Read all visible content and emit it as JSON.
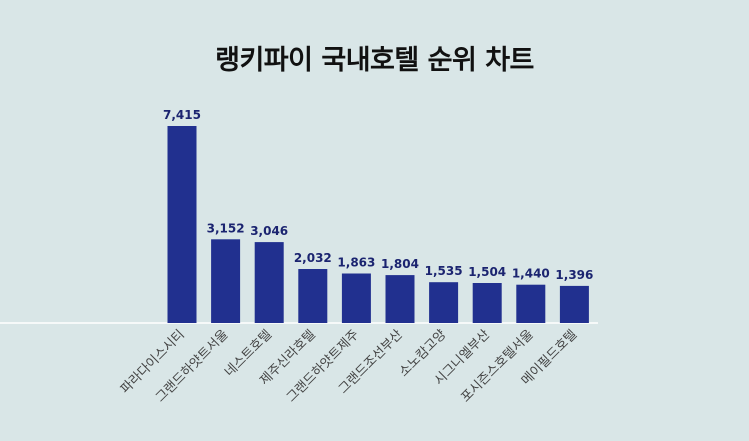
{
  "chart_data": {
    "type": "bar",
    "title": "랭키파이 국내호텔 순위 차트",
    "xlabel": "",
    "ylabel": "",
    "categories": [
      "파라다이스시티",
      "그랜드하얏트서울",
      "네스트호텔",
      "제주신라호텔",
      "그랜드하얏트제주",
      "그랜드조선부산",
      "소노캄고양",
      "시그니엘부산",
      "포시즌스호텔서울",
      "메이필드호텔"
    ],
    "values": [
      7415,
      3152,
      3046,
      2032,
      1863,
      1804,
      1535,
      1504,
      1440,
      1396
    ],
    "value_labels": [
      "7,415",
      "3,152",
      "3,046",
      "2,032",
      "1,863",
      "1,804",
      "1,535",
      "1,504",
      "1,440",
      "1,396"
    ],
    "ylim": [
      0,
      7415
    ],
    "grid": false,
    "legend": "none",
    "bar_color": "#21308f",
    "background_color": "#d9e6e7"
  }
}
